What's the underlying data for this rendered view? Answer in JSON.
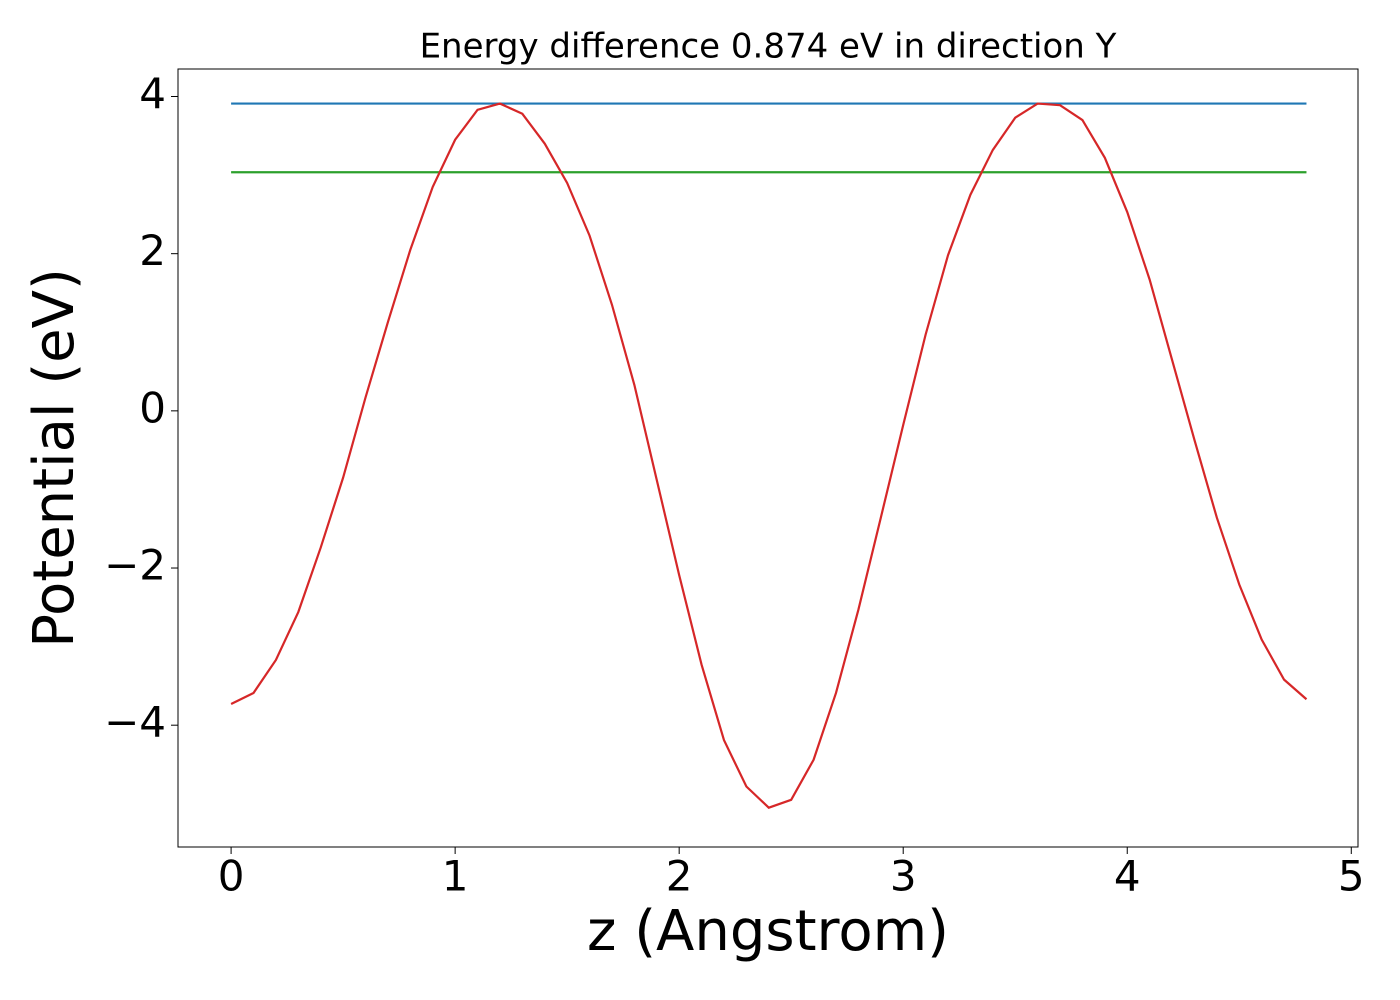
{
  "chart_data": {
    "type": "line",
    "title": "Energy difference 0.874 eV in direction Y",
    "xlabel": "z (Angstrom)",
    "ylabel": "Potential (eV)",
    "xlim": [
      -0.237,
      5.03
    ],
    "ylim": [
      -5.55,
      4.35
    ],
    "xticks": [
      0,
      1,
      2,
      3,
      4,
      5
    ],
    "yticks": [
      {
        "value": -4,
        "label": "−4"
      },
      {
        "value": -2,
        "label": "−2"
      },
      0,
      2,
      4
    ],
    "grid": false,
    "series": [
      {
        "color": "#d62728",
        "x": [
          0,
          0.1,
          0.2,
          0.3,
          0.4,
          0.5,
          0.6,
          0.7,
          0.8,
          0.9,
          1.0,
          1.1,
          1.2,
          1.3,
          1.4,
          1.5,
          1.6,
          1.7,
          1.8,
          1.9,
          2.0,
          2.1,
          2.2,
          2.3,
          2.4,
          2.5,
          2.6,
          2.7,
          2.8,
          2.9,
          3.0,
          3.1,
          3.2,
          3.3,
          3.4,
          3.5,
          3.6,
          3.7,
          3.8,
          3.9,
          4.0,
          4.1,
          4.2,
          4.3,
          4.4,
          4.5,
          4.6,
          4.7,
          4.8
        ],
        "values": [
          -3.73,
          -3.59,
          -3.17,
          -2.56,
          -1.74,
          -0.85,
          0.17,
          1.13,
          2.05,
          2.85,
          3.45,
          3.83,
          3.91,
          3.78,
          3.4,
          2.9,
          2.23,
          1.35,
          0.33,
          -0.88,
          -2.09,
          -3.23,
          -4.19,
          -4.78,
          -5.05,
          -4.95,
          -4.44,
          -3.59,
          -2.53,
          -1.36,
          -0.18,
          0.97,
          1.98,
          2.75,
          3.32,
          3.73,
          3.91,
          3.89,
          3.7,
          3.22,
          2.53,
          1.67,
          0.65,
          -0.37,
          -1.36,
          -2.21,
          -2.91,
          -3.42,
          -3.67
        ]
      },
      {
        "color": "#1f77b4",
        "x": [
          0,
          4.8
        ],
        "values": [
          3.91,
          3.91
        ]
      },
      {
        "color": "#2ca02c",
        "x": [
          0,
          4.8
        ],
        "values": [
          3.036,
          3.036
        ]
      }
    ]
  }
}
